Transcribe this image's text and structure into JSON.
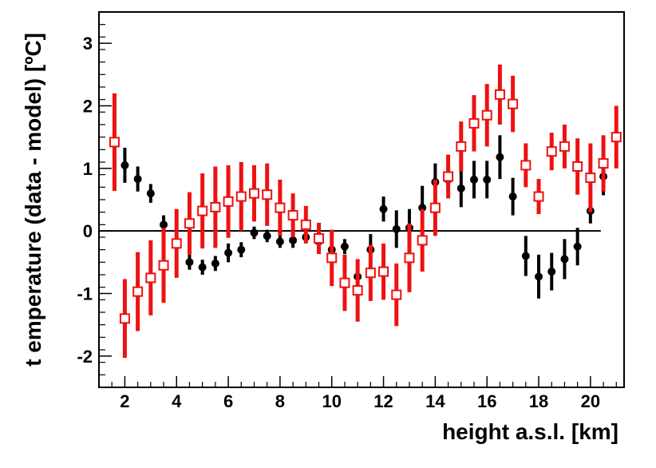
{
  "chart_data": {
    "type": "scatter",
    "title": "",
    "xlabel": "height a.s.l. [km]",
    "ylabel": "t emperature (data - model) [ºC]",
    "xlim": [
      1.0,
      21.3
    ],
    "ylim": [
      -2.5,
      3.5
    ],
    "xticks": [
      2,
      4,
      6,
      8,
      10,
      12,
      14,
      16,
      18,
      20
    ],
    "yticks": [
      -2,
      -1,
      0,
      1,
      2,
      3
    ],
    "grid": false,
    "legend": "none",
    "reference_line": {
      "y": 0,
      "x_from": 1.0,
      "x_to": 20.4
    },
    "series": [
      {
        "marker": "filled-circle",
        "color": "#000000",
        "x": [
          2.0,
          2.5,
          3.0,
          3.5,
          4.0,
          4.5,
          5.0,
          5.5,
          6.0,
          6.5,
          7.0,
          7.5,
          8.0,
          8.5,
          9.0,
          9.5,
          10.0,
          10.5,
          11.0,
          11.5,
          12.0,
          12.5,
          13.0,
          13.5,
          14.0,
          14.5,
          15.0,
          15.5,
          16.0,
          16.5,
          17.0,
          17.5,
          18.0,
          18.5,
          19.0,
          19.5,
          20.0,
          20.5,
          21.0
        ],
        "y": [
          1.05,
          0.83,
          0.6,
          0.1,
          -0.2,
          -0.5,
          -0.58,
          -0.52,
          -0.35,
          -0.3,
          -0.03,
          -0.08,
          -0.17,
          -0.15,
          -0.1,
          -0.17,
          -0.3,
          -0.25,
          -0.73,
          -0.3,
          0.35,
          0.03,
          0.05,
          0.37,
          0.78,
          0.82,
          0.68,
          0.82,
          0.82,
          1.18,
          0.55,
          -0.4,
          -0.73,
          -0.65,
          -0.45,
          -0.25,
          0.32,
          0.87,
          1.5
        ],
        "err": [
          0.28,
          0.2,
          0.15,
          0.15,
          0.1,
          0.12,
          0.12,
          0.12,
          0.15,
          0.12,
          0.1,
          0.1,
          0.1,
          0.12,
          0.08,
          0.08,
          0.12,
          0.12,
          0.2,
          0.25,
          0.2,
          0.3,
          0.3,
          0.35,
          0.3,
          0.3,
          0.3,
          0.3,
          0.3,
          0.35,
          0.3,
          0.32,
          0.35,
          0.3,
          0.32,
          0.3,
          0.2,
          0.3,
          0.05
        ]
      },
      {
        "marker": "open-square",
        "color": "#ee1111",
        "x": [
          1.6,
          2.0,
          2.5,
          3.0,
          3.5,
          4.0,
          4.5,
          5.0,
          5.5,
          6.0,
          6.5,
          7.0,
          7.5,
          8.0,
          8.5,
          9.0,
          9.5,
          10.0,
          10.5,
          11.0,
          11.5,
          12.0,
          12.5,
          13.0,
          13.5,
          14.0,
          14.5,
          15.0,
          15.5,
          16.0,
          16.5,
          17.0,
          17.5,
          18.0,
          18.5,
          19.0,
          19.5,
          20.0,
          20.5,
          21.0
        ],
        "y": [
          1.42,
          -1.4,
          -0.97,
          -0.75,
          -0.55,
          -0.2,
          0.12,
          0.32,
          0.38,
          0.47,
          0.55,
          0.6,
          0.58,
          0.37,
          0.25,
          0.1,
          -0.12,
          -0.43,
          -0.83,
          -0.95,
          -0.67,
          -0.65,
          -1.02,
          -0.43,
          -0.15,
          0.37,
          0.87,
          1.35,
          1.72,
          1.85,
          2.18,
          2.03,
          1.05,
          0.55,
          1.27,
          1.35,
          1.03,
          0.85,
          1.08,
          1.5
        ],
        "err": [
          0.78,
          0.63,
          0.63,
          0.6,
          0.6,
          0.55,
          0.5,
          0.6,
          0.65,
          0.58,
          0.55,
          0.45,
          0.5,
          0.45,
          0.35,
          0.3,
          0.25,
          0.45,
          0.45,
          0.5,
          0.45,
          0.45,
          0.5,
          0.55,
          0.5,
          0.45,
          0.35,
          0.4,
          0.45,
          0.5,
          0.48,
          0.45,
          0.35,
          0.28,
          0.3,
          0.35,
          0.45,
          0.55,
          0.45,
          0.5
        ]
      }
    ]
  }
}
